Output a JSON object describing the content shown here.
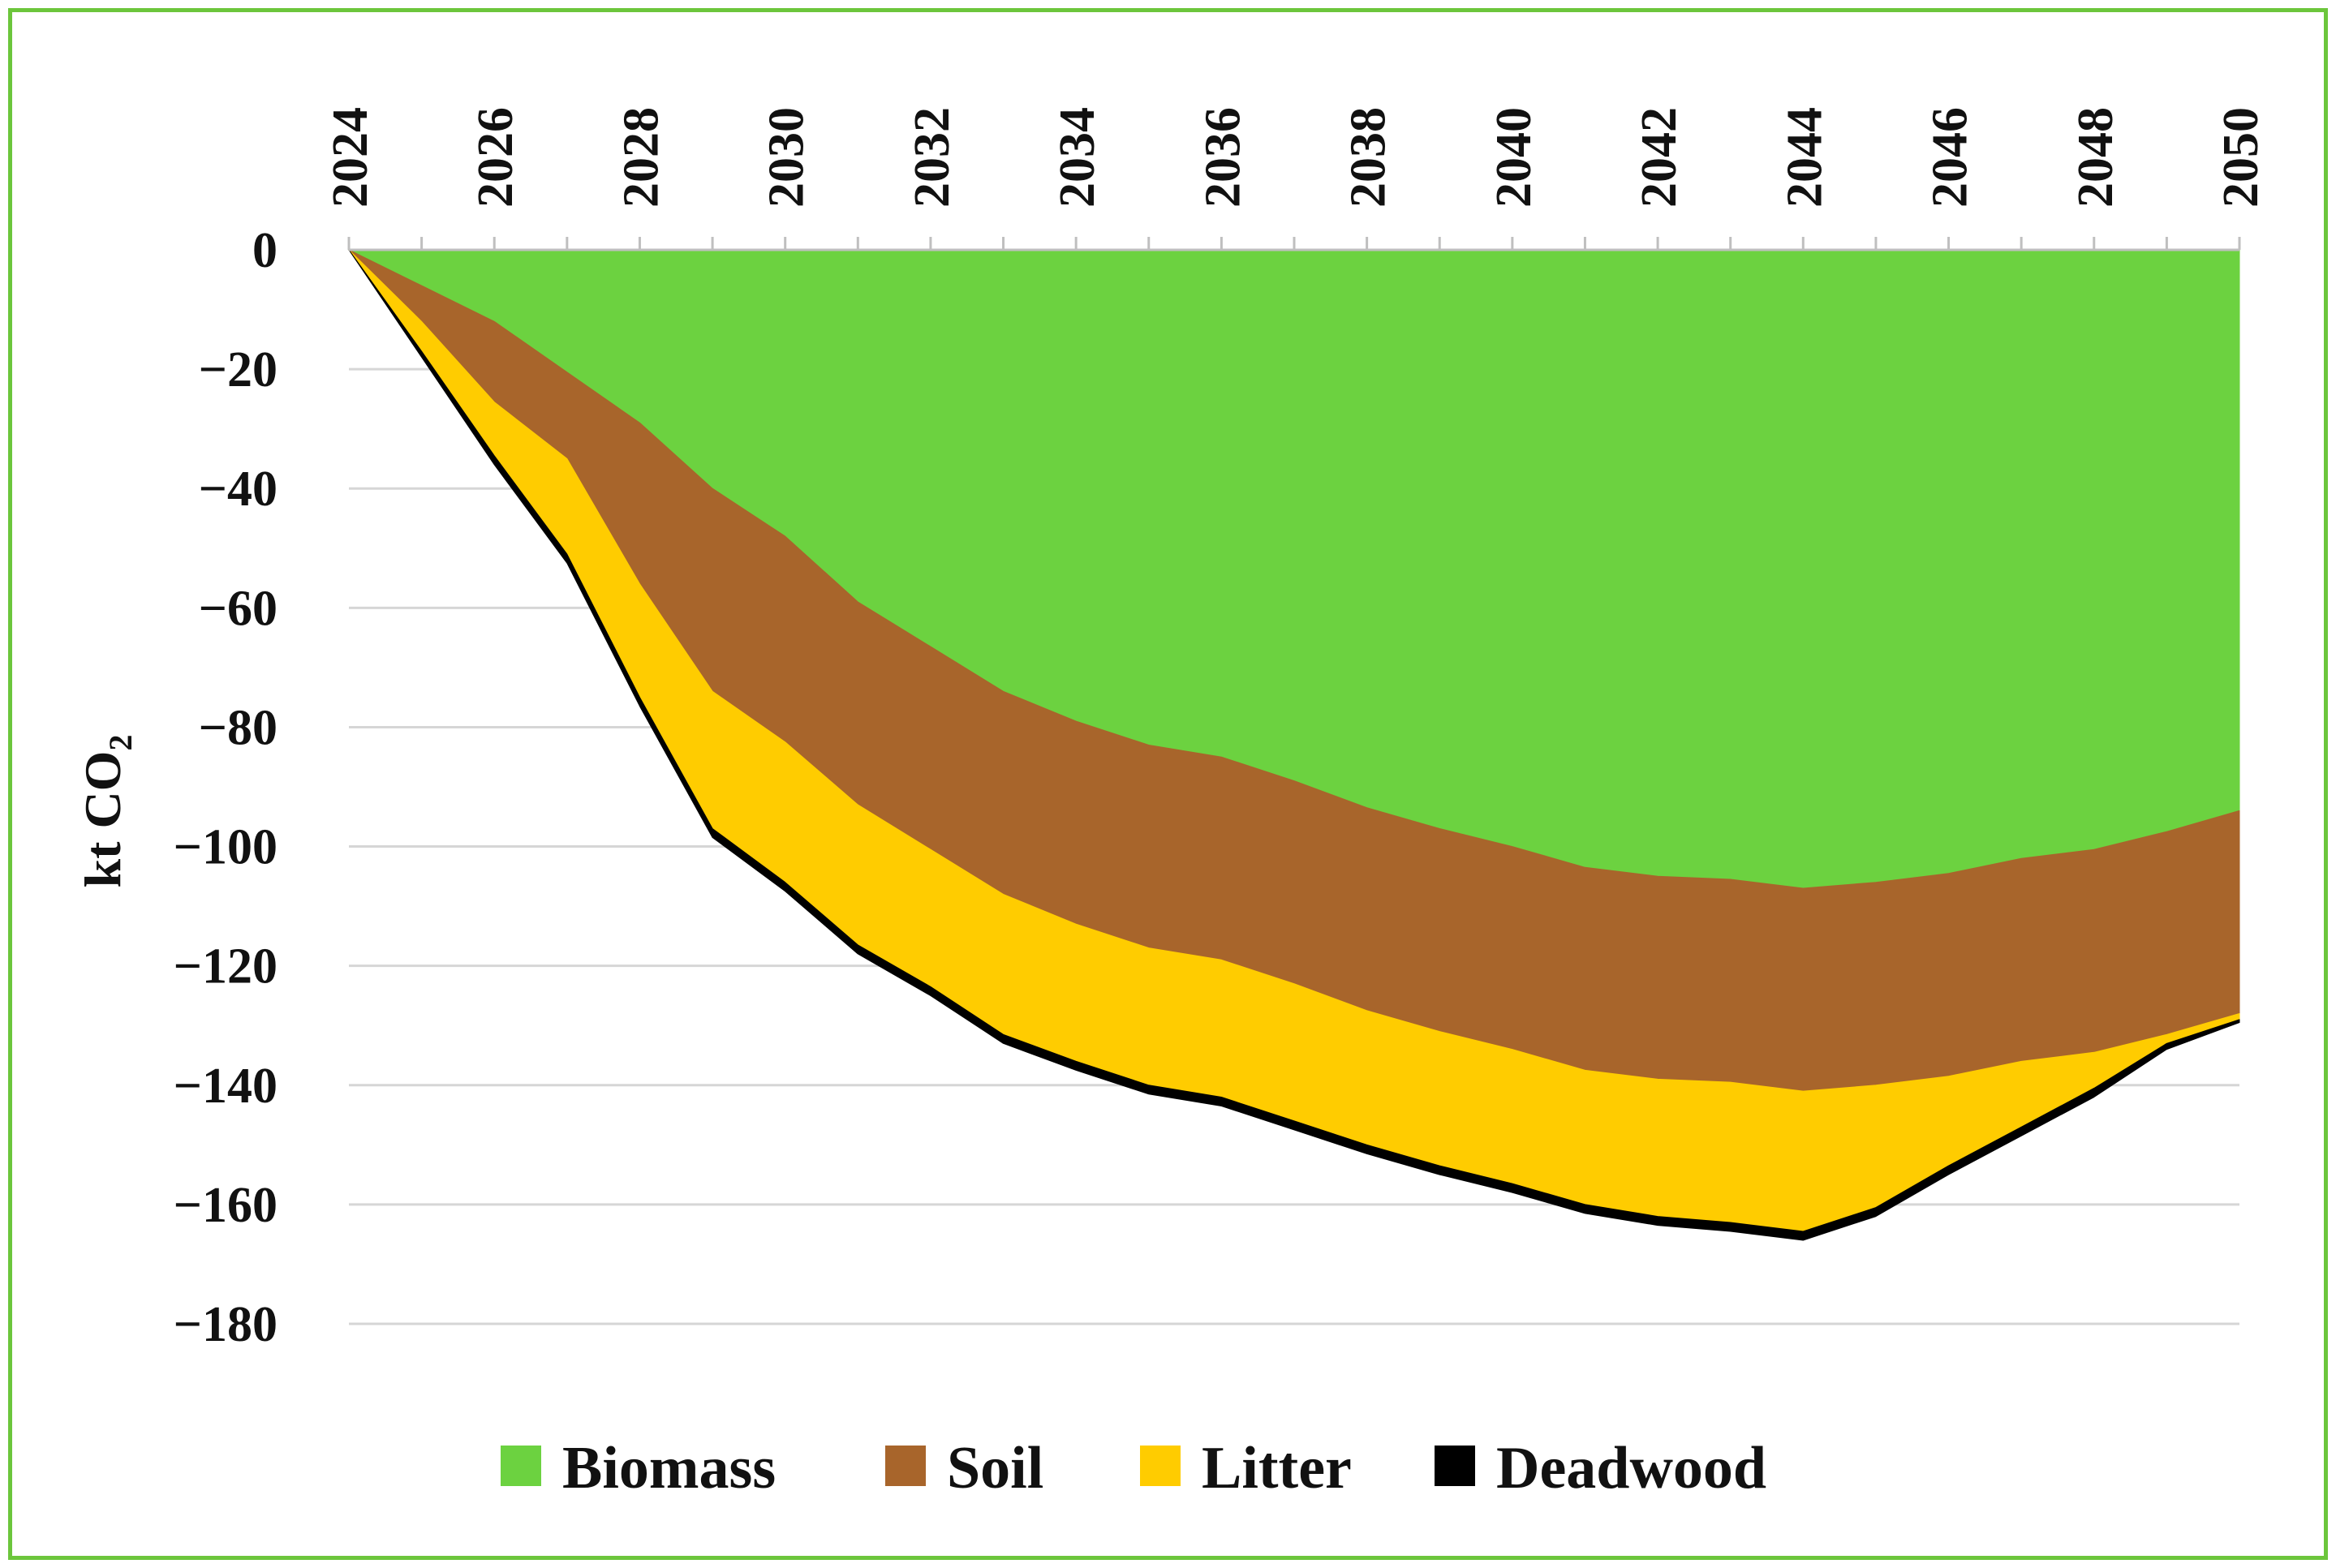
{
  "chart_data": {
    "type": "area",
    "stacked": true,
    "title": "",
    "xlabel": "",
    "ylabel": "kt CO",
    "ylabel_subscript": "2",
    "x": [
      2024,
      2025,
      2026,
      2027,
      2028,
      2029,
      2030,
      2031,
      2032,
      2033,
      2034,
      2035,
      2036,
      2037,
      2038,
      2039,
      2040,
      2041,
      2042,
      2043,
      2044,
      2045,
      2046,
      2047,
      2048,
      2049,
      2050
    ],
    "x_tick_labels": [
      "2024",
      "2026",
      "2028",
      "2030",
      "2032",
      "2034",
      "2036",
      "2038",
      "2040",
      "2042",
      "2044",
      "2046",
      "2048",
      "2050"
    ],
    "x_axis_position": "top",
    "ylim": [
      -180,
      0
    ],
    "y_ticks": [
      0,
      -20,
      -40,
      -60,
      -80,
      -100,
      -120,
      -140,
      -160,
      -180
    ],
    "y_tick_labels": [
      "0",
      "−20",
      "−40",
      "−60",
      "−80",
      "−100",
      "−120",
      "−140",
      "−160",
      "−180"
    ],
    "grid": true,
    "legend_position": "bottom",
    "series": [
      {
        "name": "Biomass",
        "color": "#6cd240",
        "values": [
          0,
          -6,
          -12,
          -20.5,
          -29,
          -40,
          -48,
          -59,
          -66.5,
          -74,
          -79,
          -83,
          -85,
          -89,
          -93.5,
          -97,
          -100,
          -103.5,
          -105,
          -105.5,
          -107,
          -106,
          -104.5,
          -102,
          -100.5,
          -97.5,
          -94
        ]
      },
      {
        "name": "Soil",
        "color": "#a8652b",
        "values": [
          0,
          -6,
          -13.5,
          -14.5,
          -27,
          -34,
          -34.5,
          -34,
          -34,
          -34,
          -34,
          -34,
          -34,
          -34,
          -34,
          -34,
          -34,
          -34,
          -34,
          -34,
          -34,
          -34,
          -34,
          -34,
          -34,
          -34,
          -34
        ]
      },
      {
        "name": "Litter",
        "color": "#ffcc00",
        "values": [
          0,
          -5,
          -9,
          -16,
          -19,
          -23,
          -23.5,
          -23.5,
          -23,
          -23.5,
          -23,
          -23,
          -23,
          -23,
          -22.5,
          -22.5,
          -22.5,
          -22.5,
          -23,
          -23.5,
          -23.5,
          -20.5,
          -15,
          -11,
          -6,
          -1.5,
          -1
        ]
      },
      {
        "name": "Deadwood",
        "color": "#000000",
        "values": [
          0,
          -1,
          -1.5,
          -1.5,
          -1.5,
          -1.5,
          -1.5,
          -1.5,
          -1.5,
          -1.5,
          -1.5,
          -1.5,
          -1.5,
          -1.5,
          -1.5,
          -1.5,
          -1.5,
          -1.5,
          -1.5,
          -1.5,
          -1.5,
          -1.5,
          -1.5,
          -1.5,
          -1.5,
          -1,
          -0.5
        ]
      }
    ]
  }
}
